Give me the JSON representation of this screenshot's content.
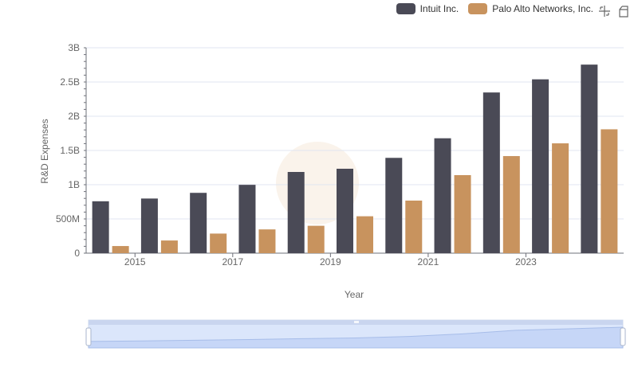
{
  "legend": {
    "items": [
      {
        "label": "Intuit Inc.",
        "color": "#4a4a56"
      },
      {
        "label": "Palo Alto Networks, Inc.",
        "color": "#c8935e"
      }
    ]
  },
  "toolbox": {
    "icons": [
      "zoom-icon",
      "restore-icon"
    ]
  },
  "chart_data": {
    "type": "bar",
    "categories": [
      "2014",
      "2015",
      "2016",
      "2017",
      "2018",
      "2019",
      "2020",
      "2021",
      "2022",
      "2023",
      "2024"
    ],
    "x_tick_labels": [
      "2015",
      "2017",
      "2019",
      "2021",
      "2023"
    ],
    "series": [
      {
        "name": "Intuit Inc.",
        "color": "#4a4a56",
        "values": [
          758,
          798,
          881,
          998,
          1186,
          1233,
          1392,
          1678,
          2347,
          2539,
          2754
        ]
      },
      {
        "name": "Palo Alto Networks, Inc.",
        "color": "#c8935e",
        "values": [
          104,
          185,
          286,
          347,
          400,
          539,
          768,
          1140,
          1418,
          1604,
          1809
        ]
      }
    ],
    "y_unit": "millions USD",
    "ylim": [
      0,
      3000
    ],
    "y_ticks": [
      0,
      500,
      1000,
      1500,
      2000,
      2500,
      3000
    ],
    "y_tick_labels": [
      "0",
      "500M",
      "1B",
      "1.5B",
      "2B",
      "2.5B",
      "3B"
    ],
    "xlabel": "Year",
    "ylabel": "R&D Expenses",
    "grid": true,
    "legend_position": "top-right",
    "data_zoom": {
      "start_percent": 0,
      "end_percent": 100
    }
  }
}
